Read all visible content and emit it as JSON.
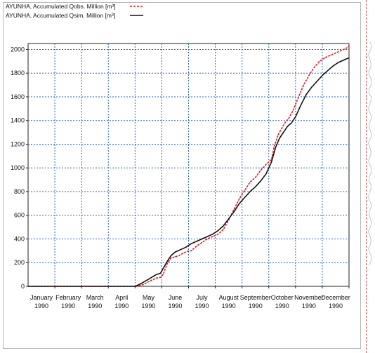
{
  "chart_data": {
    "type": "line",
    "title": "",
    "xlabel": "",
    "ylabel": "",
    "ylim": [
      0,
      2050
    ],
    "y_ticks": [
      "0",
      "200",
      "400",
      "600",
      "800",
      "1000",
      "1200",
      "1400",
      "1600",
      "1800",
      "2000"
    ],
    "x_ticks": [
      {
        "month": "January",
        "year": "1990"
      },
      {
        "month": "February",
        "year": "1990"
      },
      {
        "month": "March",
        "year": "1990"
      },
      {
        "month": "April",
        "year": "1990"
      },
      {
        "month": "May",
        "year": "1990"
      },
      {
        "month": "June",
        "year": "1990"
      },
      {
        "month": "July",
        "year": "1990"
      },
      {
        "month": "August",
        "year": "1990"
      },
      {
        "month": "September",
        "year": "1990"
      },
      {
        "month": "October",
        "year": "1990"
      },
      {
        "month": "November",
        "year": "1990"
      },
      {
        "month": "December",
        "year": "1990"
      }
    ],
    "grid": true,
    "legend_position": "top-left",
    "x_unit": "month of 1990 (0 = 1 January)",
    "series": [
      {
        "name": "AYUNHA, Accumulated Qobs. Million [m^3]",
        "color": "#e0201b",
        "style": "dashed",
        "x": [
          0,
          4.05,
          4.3,
          4.6,
          4.8,
          4.95,
          5.05,
          5.2,
          5.35,
          5.5,
          5.65,
          5.8,
          5.95,
          6.1,
          6.3,
          6.5,
          6.7,
          6.9,
          7.1,
          7.3,
          7.5,
          7.7,
          7.9,
          8.1,
          8.3,
          8.5,
          8.7,
          8.9,
          9.1,
          9.2,
          9.35,
          9.5,
          9.6,
          9.75,
          9.9,
          10.1,
          10.3,
          10.5,
          10.7,
          10.9,
          11.1,
          11.3,
          11.5,
          11.7,
          11.9,
          12.0
        ],
        "values": [
          0,
          0,
          15,
          50,
          70,
          75,
          100,
          190,
          240,
          250,
          260,
          280,
          295,
          300,
          340,
          370,
          400,
          420,
          440,
          480,
          560,
          650,
          740,
          810,
          880,
          920,
          980,
          1030,
          1070,
          1180,
          1280,
          1340,
          1380,
          1420,
          1480,
          1590,
          1700,
          1780,
          1850,
          1900,
          1930,
          1950,
          1970,
          1990,
          2010,
          2030
        ]
      },
      {
        "name": "AYUNHA, Accumulated Qsim. Million [m^3]",
        "color": "#111111",
        "style": "solid",
        "x": [
          0,
          4.0,
          4.2,
          4.5,
          4.8,
          4.95,
          5.05,
          5.2,
          5.35,
          5.5,
          5.7,
          5.9,
          6.1,
          6.3,
          6.5,
          6.7,
          6.9,
          7.1,
          7.3,
          7.5,
          7.7,
          7.9,
          8.1,
          8.3,
          8.5,
          8.7,
          8.9,
          9.1,
          9.25,
          9.4,
          9.55,
          9.7,
          9.85,
          10.0,
          10.2,
          10.4,
          10.6,
          10.8,
          11.0,
          11.2,
          11.4,
          11.6,
          11.8,
          12.0
        ],
        "values": [
          0,
          0,
          20,
          60,
          100,
          110,
          150,
          210,
          260,
          290,
          310,
          330,
          360,
          380,
          400,
          420,
          440,
          470,
          510,
          570,
          630,
          700,
          750,
          800,
          840,
          890,
          950,
          1050,
          1170,
          1250,
          1300,
          1350,
          1380,
          1430,
          1530,
          1620,
          1680,
          1730,
          1780,
          1820,
          1860,
          1890,
          1910,
          1930
        ]
      }
    ]
  }
}
